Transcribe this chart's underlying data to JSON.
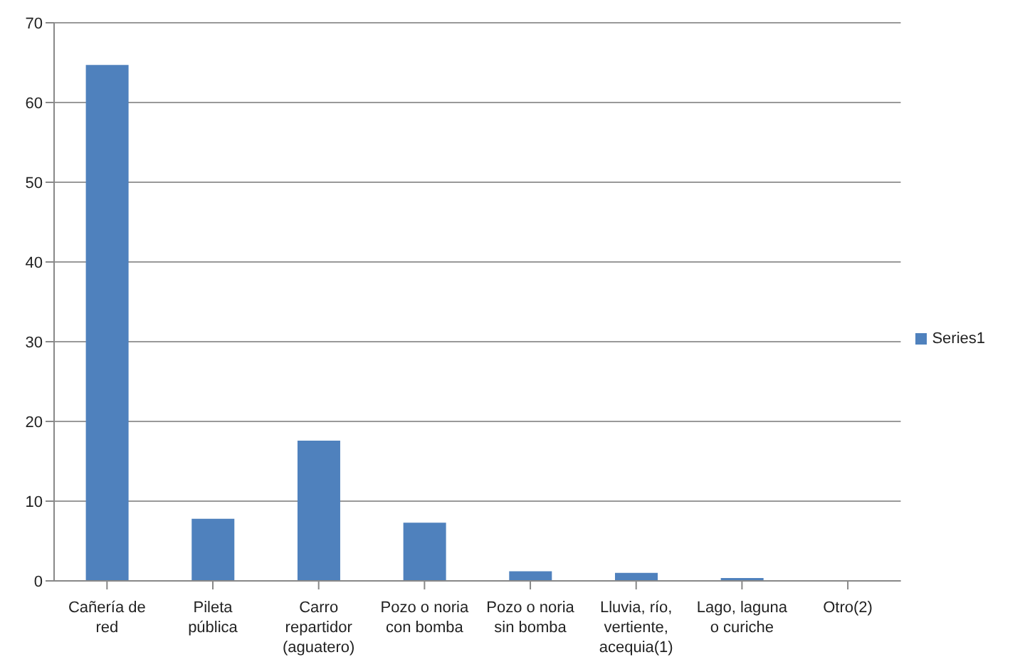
{
  "chart_data": {
    "type": "bar",
    "categories": [
      "Cañería de red",
      "Pileta pública",
      "Carro repartidor (aguatero)",
      "Pozo o noria con bomba",
      "Pozo o noria sin bomba",
      "Lluvia, río, vertiente, acequia(1)",
      "Lago, laguna o curiche",
      "Otro(2)"
    ],
    "series": [
      {
        "name": "Series1",
        "color": "#4f81bd",
        "values": [
          64.7,
          7.8,
          17.6,
          7.3,
          1.2,
          1.0,
          0.2,
          0
        ]
      }
    ],
    "ylim": [
      0,
      70
    ],
    "yticks": [
      0,
      10,
      20,
      30,
      40,
      50,
      60,
      70
    ],
    "grid": "y",
    "legend": "right"
  }
}
